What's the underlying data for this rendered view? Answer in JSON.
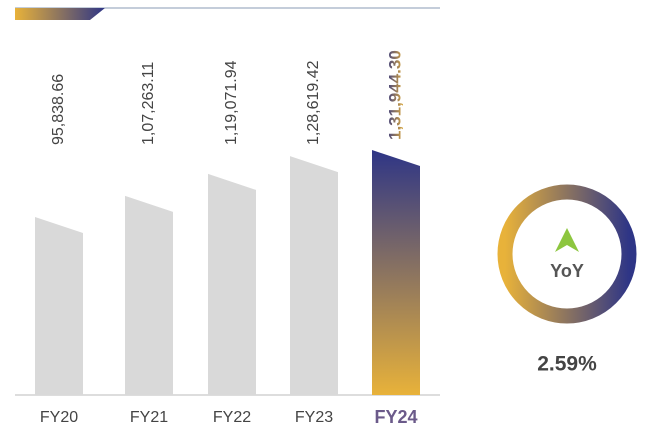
{
  "chart_data": {
    "type": "bar",
    "categories": [
      "FY20",
      "FY21",
      "FY22",
      "FY23",
      "FY24"
    ],
    "values": [
      95838.66,
      107263.11,
      119071.94,
      128619.42,
      131944.3
    ],
    "value_labels": [
      "95,838.66",
      "1,07,263.11",
      "1,19,071.94",
      "1,28,619.42",
      "1,31,944.30"
    ],
    "color": "#d9d9d9",
    "highlight_color": [
      "#2e3586",
      "#e8b23a"
    ],
    "yoy": {
      "label": "YoY",
      "value": 2.59,
      "value_label": "2.59%"
    }
  }
}
